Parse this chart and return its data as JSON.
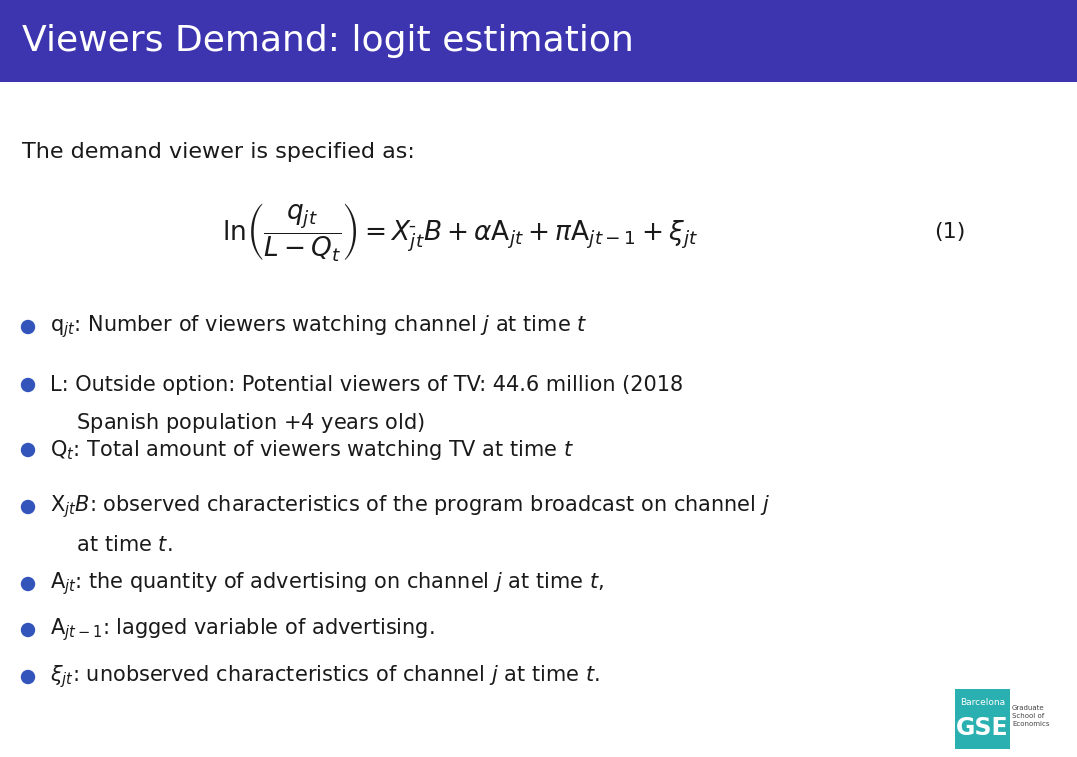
{
  "title": "Viewers Demand: logit estimation",
  "title_bg_color": "#3d35b0",
  "title_text_color": "#ffffff",
  "bg_color": "#f0f0f0",
  "intro_text": "The demand viewer is specified as:",
  "eq_number": "(1)",
  "bullet_color": "#3355bb",
  "gse_color": "#2ab0b0",
  "fig_w": 10.77,
  "fig_h": 7.57,
  "dpi": 100
}
